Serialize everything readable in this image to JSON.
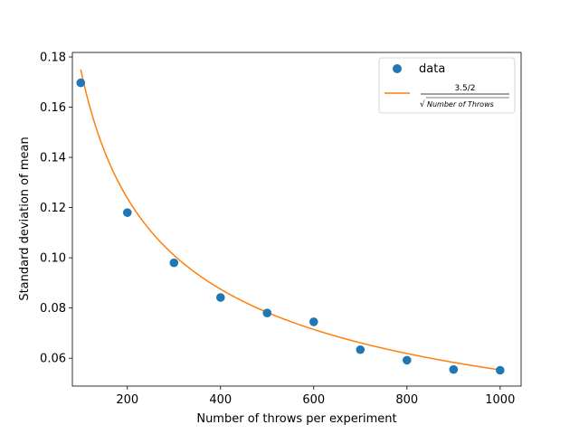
{
  "chart_data": {
    "type": "scatter",
    "xlabel": "Number of throws per experiment",
    "ylabel": "Standard deviation of mean",
    "xlim": [
      82,
      1045
    ],
    "ylim": [
      0.0489,
      0.1818
    ],
    "xticks": [
      200,
      400,
      600,
      800,
      1000
    ],
    "yticks": [
      0.06,
      0.08,
      0.1,
      0.12,
      0.14,
      0.16,
      0.18
    ],
    "xtick_labels": [
      "200",
      "400",
      "600",
      "800",
      "1000"
    ],
    "ytick_labels": [
      "0.06",
      "0.08",
      "0.10",
      "0.12",
      "0.14",
      "0.16",
      "0.18"
    ],
    "grid": false,
    "legend_position": "top-right",
    "series": [
      {
        "name": "data",
        "kind": "scatter",
        "color": "#1f77b4",
        "x": [
          100,
          200,
          300,
          400,
          500,
          600,
          700,
          800,
          900,
          1000
        ],
        "y": [
          0.1697,
          0.118,
          0.098,
          0.0842,
          0.078,
          0.0745,
          0.0634,
          0.0592,
          0.0555,
          0.0552
        ]
      },
      {
        "name": "fit",
        "kind": "line",
        "color": "#ff7f0e",
        "numerator": 1.75,
        "x_range": [
          100,
          1000
        ]
      }
    ],
    "legend": {
      "data_label": "data",
      "fit_numerator": "3.5/2",
      "fit_denominator": "Number of Throws",
      "fit_radical": "√"
    }
  }
}
